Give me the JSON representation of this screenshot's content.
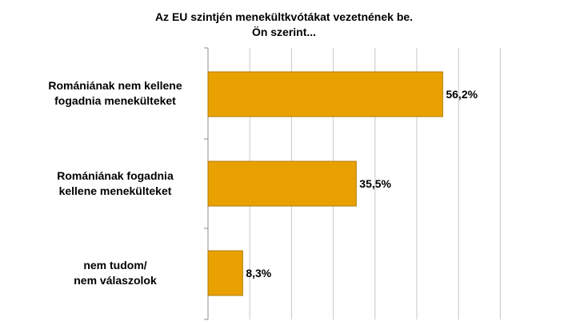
{
  "chart_data": {
    "type": "bar",
    "orientation": "horizontal",
    "title": [
      "Az EU szintjén menekültkvótákat vezetnének be.",
      "Ön szerint..."
    ],
    "categories": [
      [
        "Romániának nem kellene",
        "fogadnia menekülteket"
      ],
      [
        "Romániának fogadnia",
        "kellene menekülteket"
      ],
      [
        "nem tudom/",
        "nem válaszolok"
      ]
    ],
    "values": [
      56.2,
      35.5,
      8.3
    ],
    "value_labels": [
      "56,2%",
      "35,5%",
      "8,3%"
    ],
    "xlim": [
      0,
      70
    ],
    "grid": true,
    "colors": {
      "bar": "#E8A100",
      "bar_stroke": "#B07A00",
      "grid": "#C8C8C8",
      "axis": "#8C8C8C"
    }
  }
}
